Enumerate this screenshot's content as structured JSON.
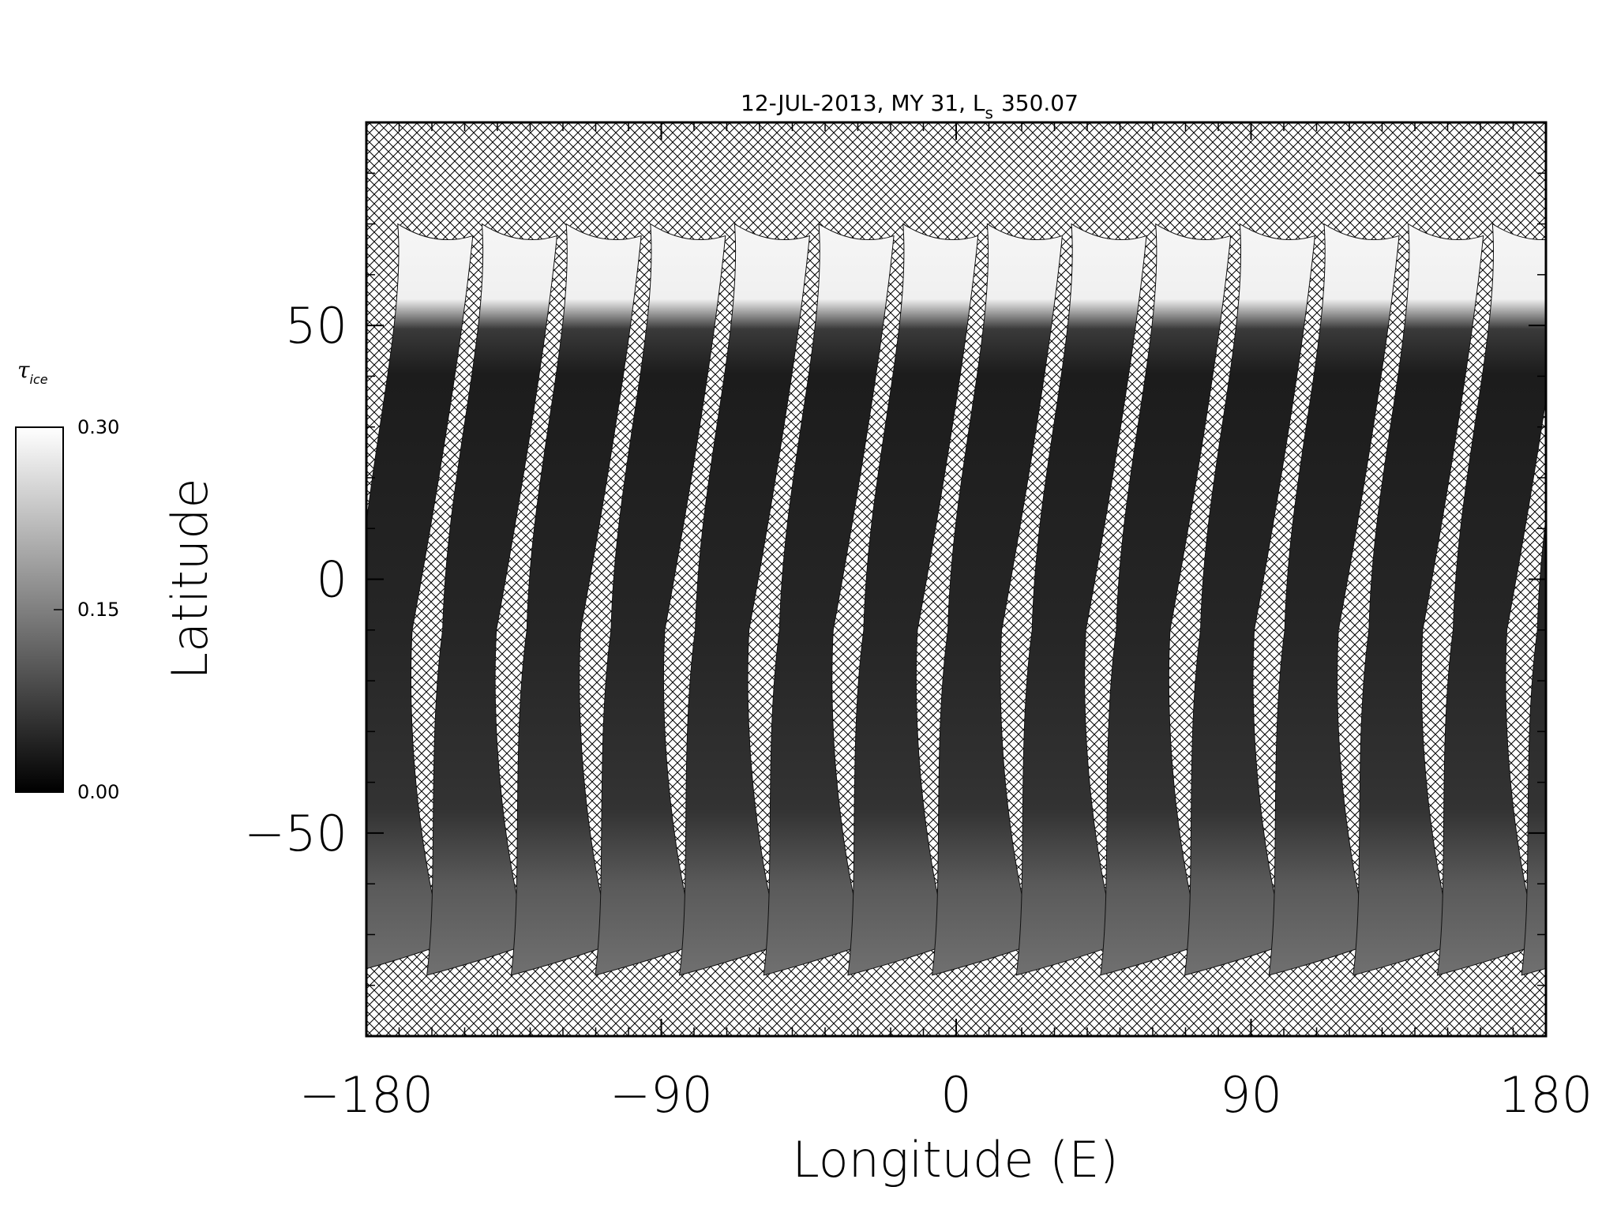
{
  "chart_data": {
    "type": "heatmap",
    "title": "12-JUL-2013, MY 31,  L",
    "title_subscript": "s",
    "title_value": "350.07",
    "xlabel": "Longitude (E)",
    "ylabel": "Latitude",
    "xlim": [
      -180,
      180
    ],
    "ylim": [
      -90,
      90
    ],
    "x_ticks": [
      -180,
      -90,
      0,
      90,
      180
    ],
    "x_tick_labels": [
      "−180",
      "−90",
      "0",
      "90",
      "180"
    ],
    "y_ticks": [
      50,
      0,
      -50
    ],
    "y_tick_labels": [
      "50",
      "0",
      "−50"
    ],
    "grid": false,
    "missing_data_pattern": "crosshatch",
    "colorbar": {
      "label": "τ",
      "label_subscript": "ice",
      "min": 0.0,
      "max": 0.3,
      "ticks": [
        0.3,
        0.15,
        0.0
      ],
      "tick_labels": [
        "0.30",
        "0.15",
        "0.00"
      ],
      "colormap": "grayscale",
      "placement": "left"
    },
    "orbit_swaths": {
      "count": 14,
      "north_edge_lat": 70,
      "south_edge_lat": -78,
      "north_cap_value": 0.29,
      "body_value": 0.04,
      "south_value": 0.12,
      "start_lon_south": -180,
      "spacing_deg": 25.7
    }
  }
}
